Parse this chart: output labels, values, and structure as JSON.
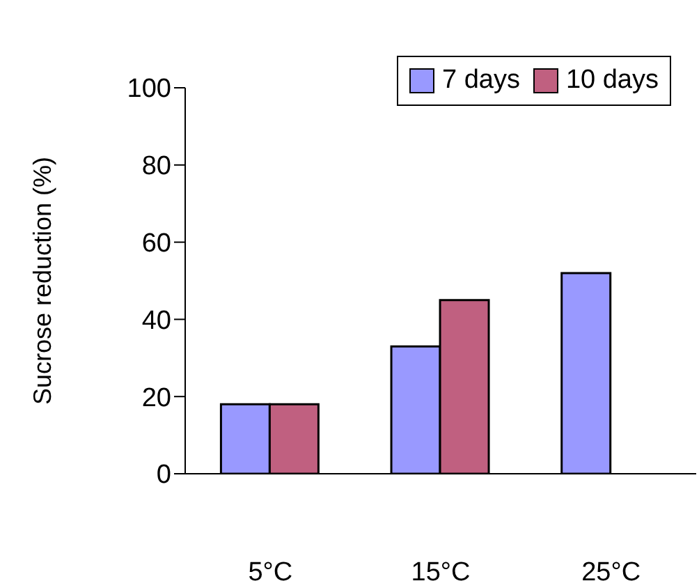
{
  "chart_data": {
    "type": "bar",
    "ylabel": "Sucrose reduction (%)",
    "categories": [
      "5°C",
      "15°C",
      "25°C"
    ],
    "series": [
      {
        "name": "7 days",
        "color": "#9999ff",
        "values": [
          18,
          33,
          52
        ]
      },
      {
        "name": "10 days",
        "color": "#c06080",
        "values": [
          18,
          45,
          null
        ]
      }
    ],
    "ylim": [
      0,
      100
    ],
    "yticks": [
      0,
      20,
      40,
      60,
      80,
      100
    ],
    "grid": false,
    "legend": "top right"
  }
}
